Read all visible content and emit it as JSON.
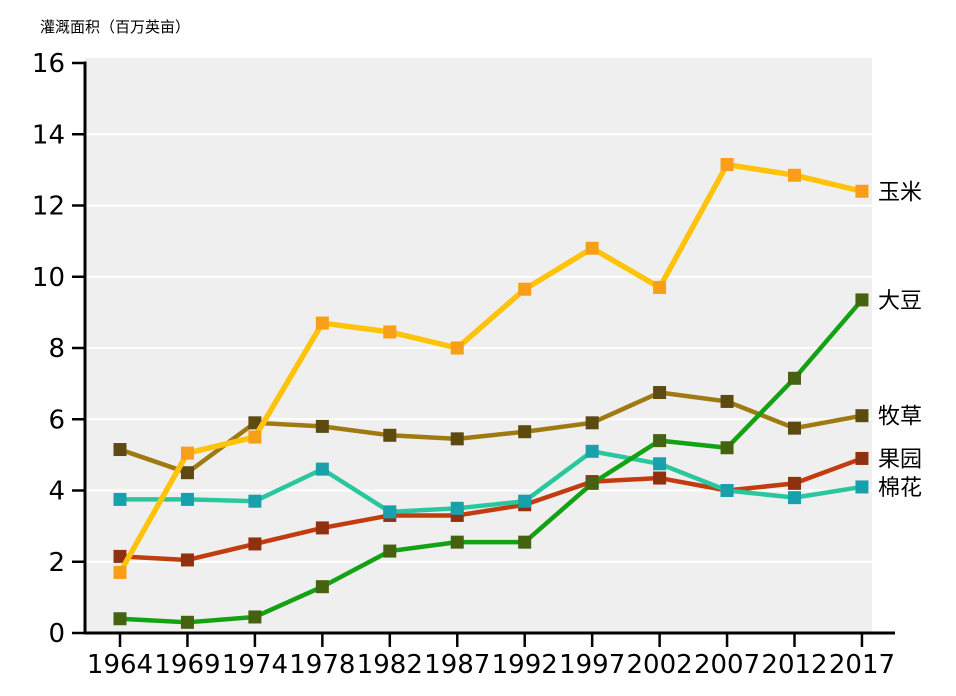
{
  "chart_data": {
    "type": "line",
    "title": "灌溉面积（百万英亩）",
    "xlabel": "",
    "ylabel": "灌溉面积（百万英亩）",
    "ylim": [
      0,
      16
    ],
    "yticks": [
      0,
      2,
      4,
      6,
      8,
      10,
      12,
      14,
      16
    ],
    "grid": "horizontal-white-lines-on-gray",
    "legend_position": "right-end-of-line-labels",
    "categories": [
      "1964",
      "1969",
      "1974",
      "1978",
      "1982",
      "1987",
      "1992",
      "1997",
      "2002",
      "2007",
      "2012",
      "2017"
    ],
    "series": [
      {
        "key": "hay",
        "name": "牧草",
        "values": [
          5.15,
          4.5,
          5.9,
          5.8,
          5.55,
          5.45,
          5.65,
          5.9,
          6.75,
          6.5,
          5.75,
          6.1
        ],
        "line_color": "#9E7A10",
        "marker_color": "#5D4A10"
      },
      {
        "key": "orchard",
        "name": "果园",
        "values": [
          2.15,
          2.05,
          2.5,
          2.95,
          3.3,
          3.3,
          3.6,
          4.25,
          4.35,
          4.0,
          4.2,
          4.9
        ],
        "line_color": "#C23C10",
        "marker_color": "#8F3010"
      },
      {
        "key": "cotton",
        "name": "棉花",
        "values": [
          3.75,
          3.75,
          3.7,
          4.6,
          3.4,
          3.5,
          3.7,
          5.1,
          4.75,
          4.0,
          3.8,
          4.1
        ],
        "line_color": "#2AC79F",
        "marker_color": "#18A1AB"
      },
      {
        "key": "soybean",
        "name": "大豆",
        "values": [
          0.4,
          0.3,
          0.45,
          1.3,
          2.3,
          2.55,
          2.55,
          4.2,
          5.4,
          5.2,
          7.15,
          9.35
        ],
        "line_color": "#12A212",
        "marker_color": "#44620F"
      },
      {
        "key": "corn",
        "name": "玉米",
        "values": [
          1.7,
          5.05,
          5.5,
          8.7,
          8.45,
          8.0,
          9.65,
          10.8,
          9.7,
          13.15,
          12.85,
          12.4
        ],
        "line_color": "#FFC30B",
        "marker_color": "#F99E17"
      }
    ],
    "colors": {
      "plot_background": "#EFEFEF",
      "gridline": "#FFFFFF",
      "axis": "#000000",
      "text": "#000000"
    }
  }
}
